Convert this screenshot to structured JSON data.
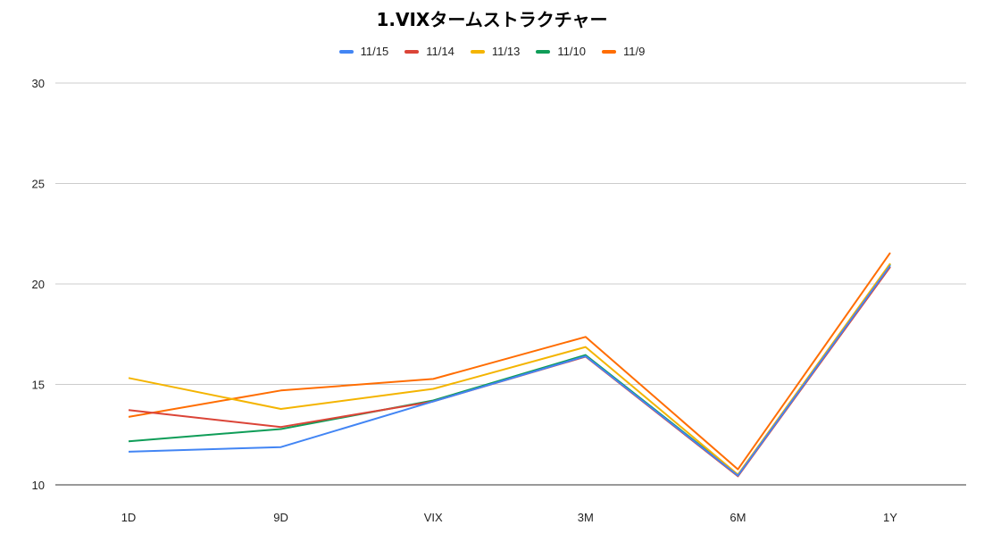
{
  "chart_data": {
    "type": "line",
    "title": "1.VIXタームストラクチャー",
    "xlabel": "",
    "ylabel": "",
    "categories": [
      "1D",
      "9D",
      "VIX",
      "3M",
      "6M",
      "1Y"
    ],
    "ylim": [
      10,
      30
    ],
    "yticks": [
      10,
      15,
      20,
      25,
      30
    ],
    "grid": true,
    "legend_position": "top",
    "series": [
      {
        "name": "11/15",
        "color": "#4285f4",
        "values": [
          11.65,
          11.88,
          14.15,
          null,
          null,
          20.92
        ]
      },
      {
        "name": "11/14",
        "color": "#db4437",
        "values": [
          13.72,
          12.88,
          14.15,
          null,
          null,
          20.85
        ]
      },
      {
        "name": "11/13",
        "color": "#f4b400",
        "values": [
          15.32,
          13.78,
          14.78,
          null,
          null,
          21.02
        ]
      },
      {
        "name": "11/10",
        "color": "#0f9d58",
        "values": [
          12.17,
          12.78,
          14.2,
          null,
          null,
          20.98
        ]
      },
      {
        "name": "11/9",
        "color": "#ff6d01",
        "values": [
          13.38,
          14.7,
          15.27,
          null,
          null,
          21.55
        ]
      }
    ]
  }
}
